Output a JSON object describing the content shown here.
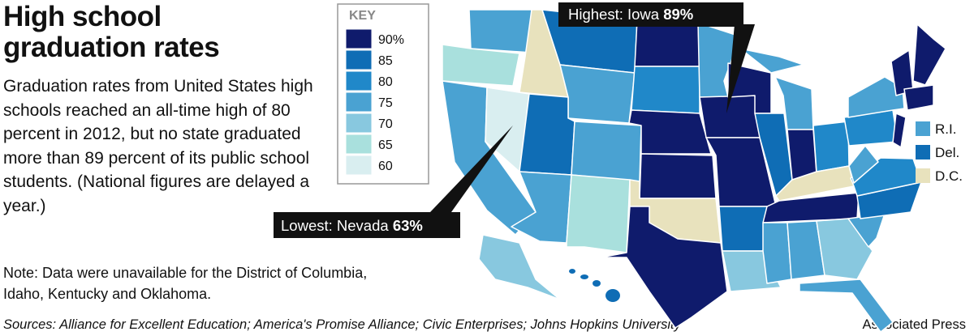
{
  "header": {
    "title": "High school graduation rates",
    "body": "Graduation rates from United States high schools reached an all-time high of 80 percent in 2012, but no state graduated more than 89 percent of its public school students. (National figures are delayed a year.)",
    "note": "Note: Data were unavailable for the District of Columbia, Idaho, Kentucky and Oklahoma."
  },
  "key": {
    "title": "KEY",
    "items": [
      {
        "label": "90%",
        "color": "#0f1b6c"
      },
      {
        "label": "85",
        "color": "#0f6db5"
      },
      {
        "label": "80",
        "color": "#2088c9"
      },
      {
        "label": "75",
        "color": "#4aa2d2"
      },
      {
        "label": "70",
        "color": "#88c8df"
      },
      {
        "label": "65",
        "color": "#a9e0dd"
      },
      {
        "label": "60",
        "color": "#d9eef0"
      }
    ]
  },
  "small_key": [
    {
      "label": "R.I.",
      "color": "#4aa2d2"
    },
    {
      "label": "Del.",
      "color": "#0f6db5"
    },
    {
      "label": "D.C.",
      "color": "#e8e2bd"
    }
  ],
  "annotations": {
    "highest": {
      "label": "Highest: Iowa",
      "value": "89%"
    },
    "lowest": {
      "label": "Lowest: Nevada",
      "value": "63%"
    }
  },
  "footer": {
    "sources": "Sources: Alliance for Excellent Education; America's Promise Alliance; Civic Enterprises; Johns Hopkins University",
    "credit": "Associated Press"
  }
}
